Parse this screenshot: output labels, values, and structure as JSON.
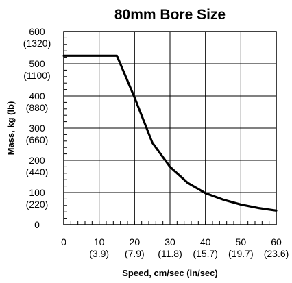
{
  "chart_data": {
    "type": "line",
    "title": "80mm Bore Size",
    "xlabel": "Speed, cm/sec (in/sec)",
    "ylabel": "Mass, kg (lb)",
    "xlim": [
      0,
      60
    ],
    "ylim": [
      0,
      600
    ],
    "grid": true,
    "x_ticks": [
      {
        "value": 0,
        "label": "0",
        "sub": ""
      },
      {
        "value": 10,
        "label": "10",
        "sub": "(3.9)"
      },
      {
        "value": 20,
        "label": "20",
        "sub": "(7.9)"
      },
      {
        "value": 30,
        "label": "30",
        "sub": "(11.8)"
      },
      {
        "value": 40,
        "label": "40",
        "sub": "(15.7)"
      },
      {
        "value": 50,
        "label": "50",
        "sub": "(19.7)"
      },
      {
        "value": 60,
        "label": "60",
        "sub": "(23.6)"
      }
    ],
    "y_ticks": [
      {
        "value": 0,
        "label": "0",
        "sub": ""
      },
      {
        "value": 100,
        "label": "100",
        "sub": "(220)"
      },
      {
        "value": 200,
        "label": "200",
        "sub": "(440)"
      },
      {
        "value": 300,
        "label": "300",
        "sub": "(660)"
      },
      {
        "value": 400,
        "label": "400",
        "sub": "(880)"
      },
      {
        "value": 500,
        "label": "500",
        "sub": "(1100)"
      },
      {
        "value": 600,
        "label": "600",
        "sub": "(1320)"
      }
    ],
    "series": [
      {
        "x": [
          0,
          15,
          20,
          25,
          30,
          35,
          40,
          45,
          50,
          55,
          60
        ],
        "y": [
          525,
          525,
          395,
          255,
          180,
          130,
          98,
          78,
          63,
          52,
          44
        ]
      }
    ]
  }
}
